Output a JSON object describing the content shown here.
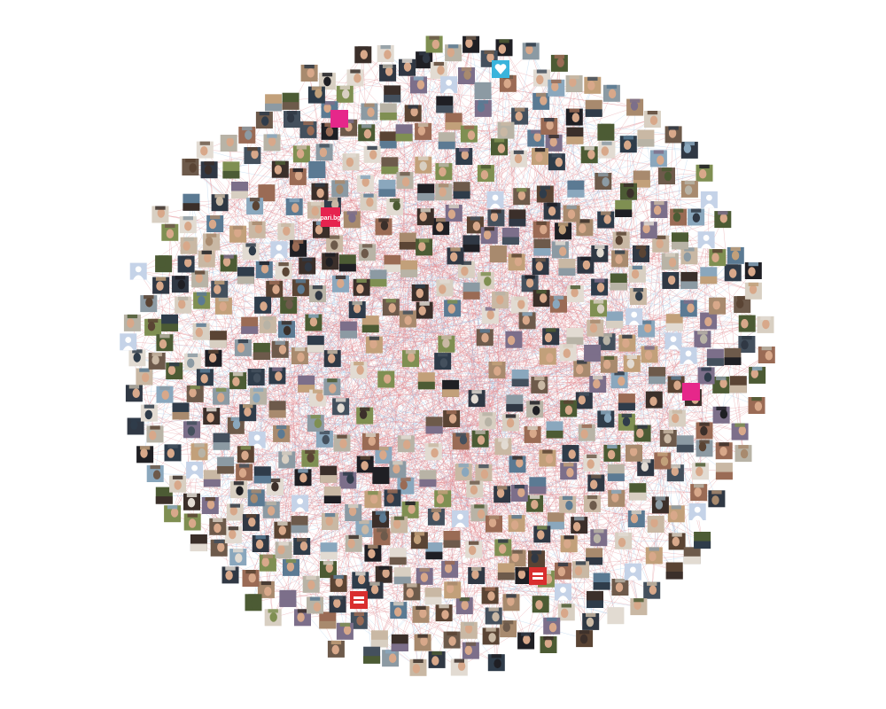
{
  "network": {
    "node_count": 560,
    "background": "#ffffff",
    "edge_colors": [
      "#e0868c",
      "#9fc6e6"
    ],
    "avatar_kinds": [
      "photo",
      "default-silhouette",
      "logo",
      "equality-logo",
      "heart-logo"
    ],
    "thumbnail_palette": [
      "#3b2f2a",
      "#6d5a4b",
      "#a88a6e",
      "#c9b8a4",
      "#2f3c4a",
      "#5b7a93",
      "#8aa7bd",
      "#4c5b34",
      "#7f8f52",
      "#b8b3a6",
      "#1f1f24",
      "#d8cfc2",
      "#9a6b55",
      "#44505d",
      "#7c6f8a",
      "#c2a07a",
      "#5a4434",
      "#e2dbd2",
      "#303844",
      "#8c9aa3"
    ],
    "silhouette_color": "#c5d3e8",
    "equality_logo_color": "#d92e2e",
    "heart_logo_color": "#3ab4dc",
    "pink_logo_color": "#e6278a"
  },
  "labels": {
    "pari_logo": "pari.bg"
  }
}
